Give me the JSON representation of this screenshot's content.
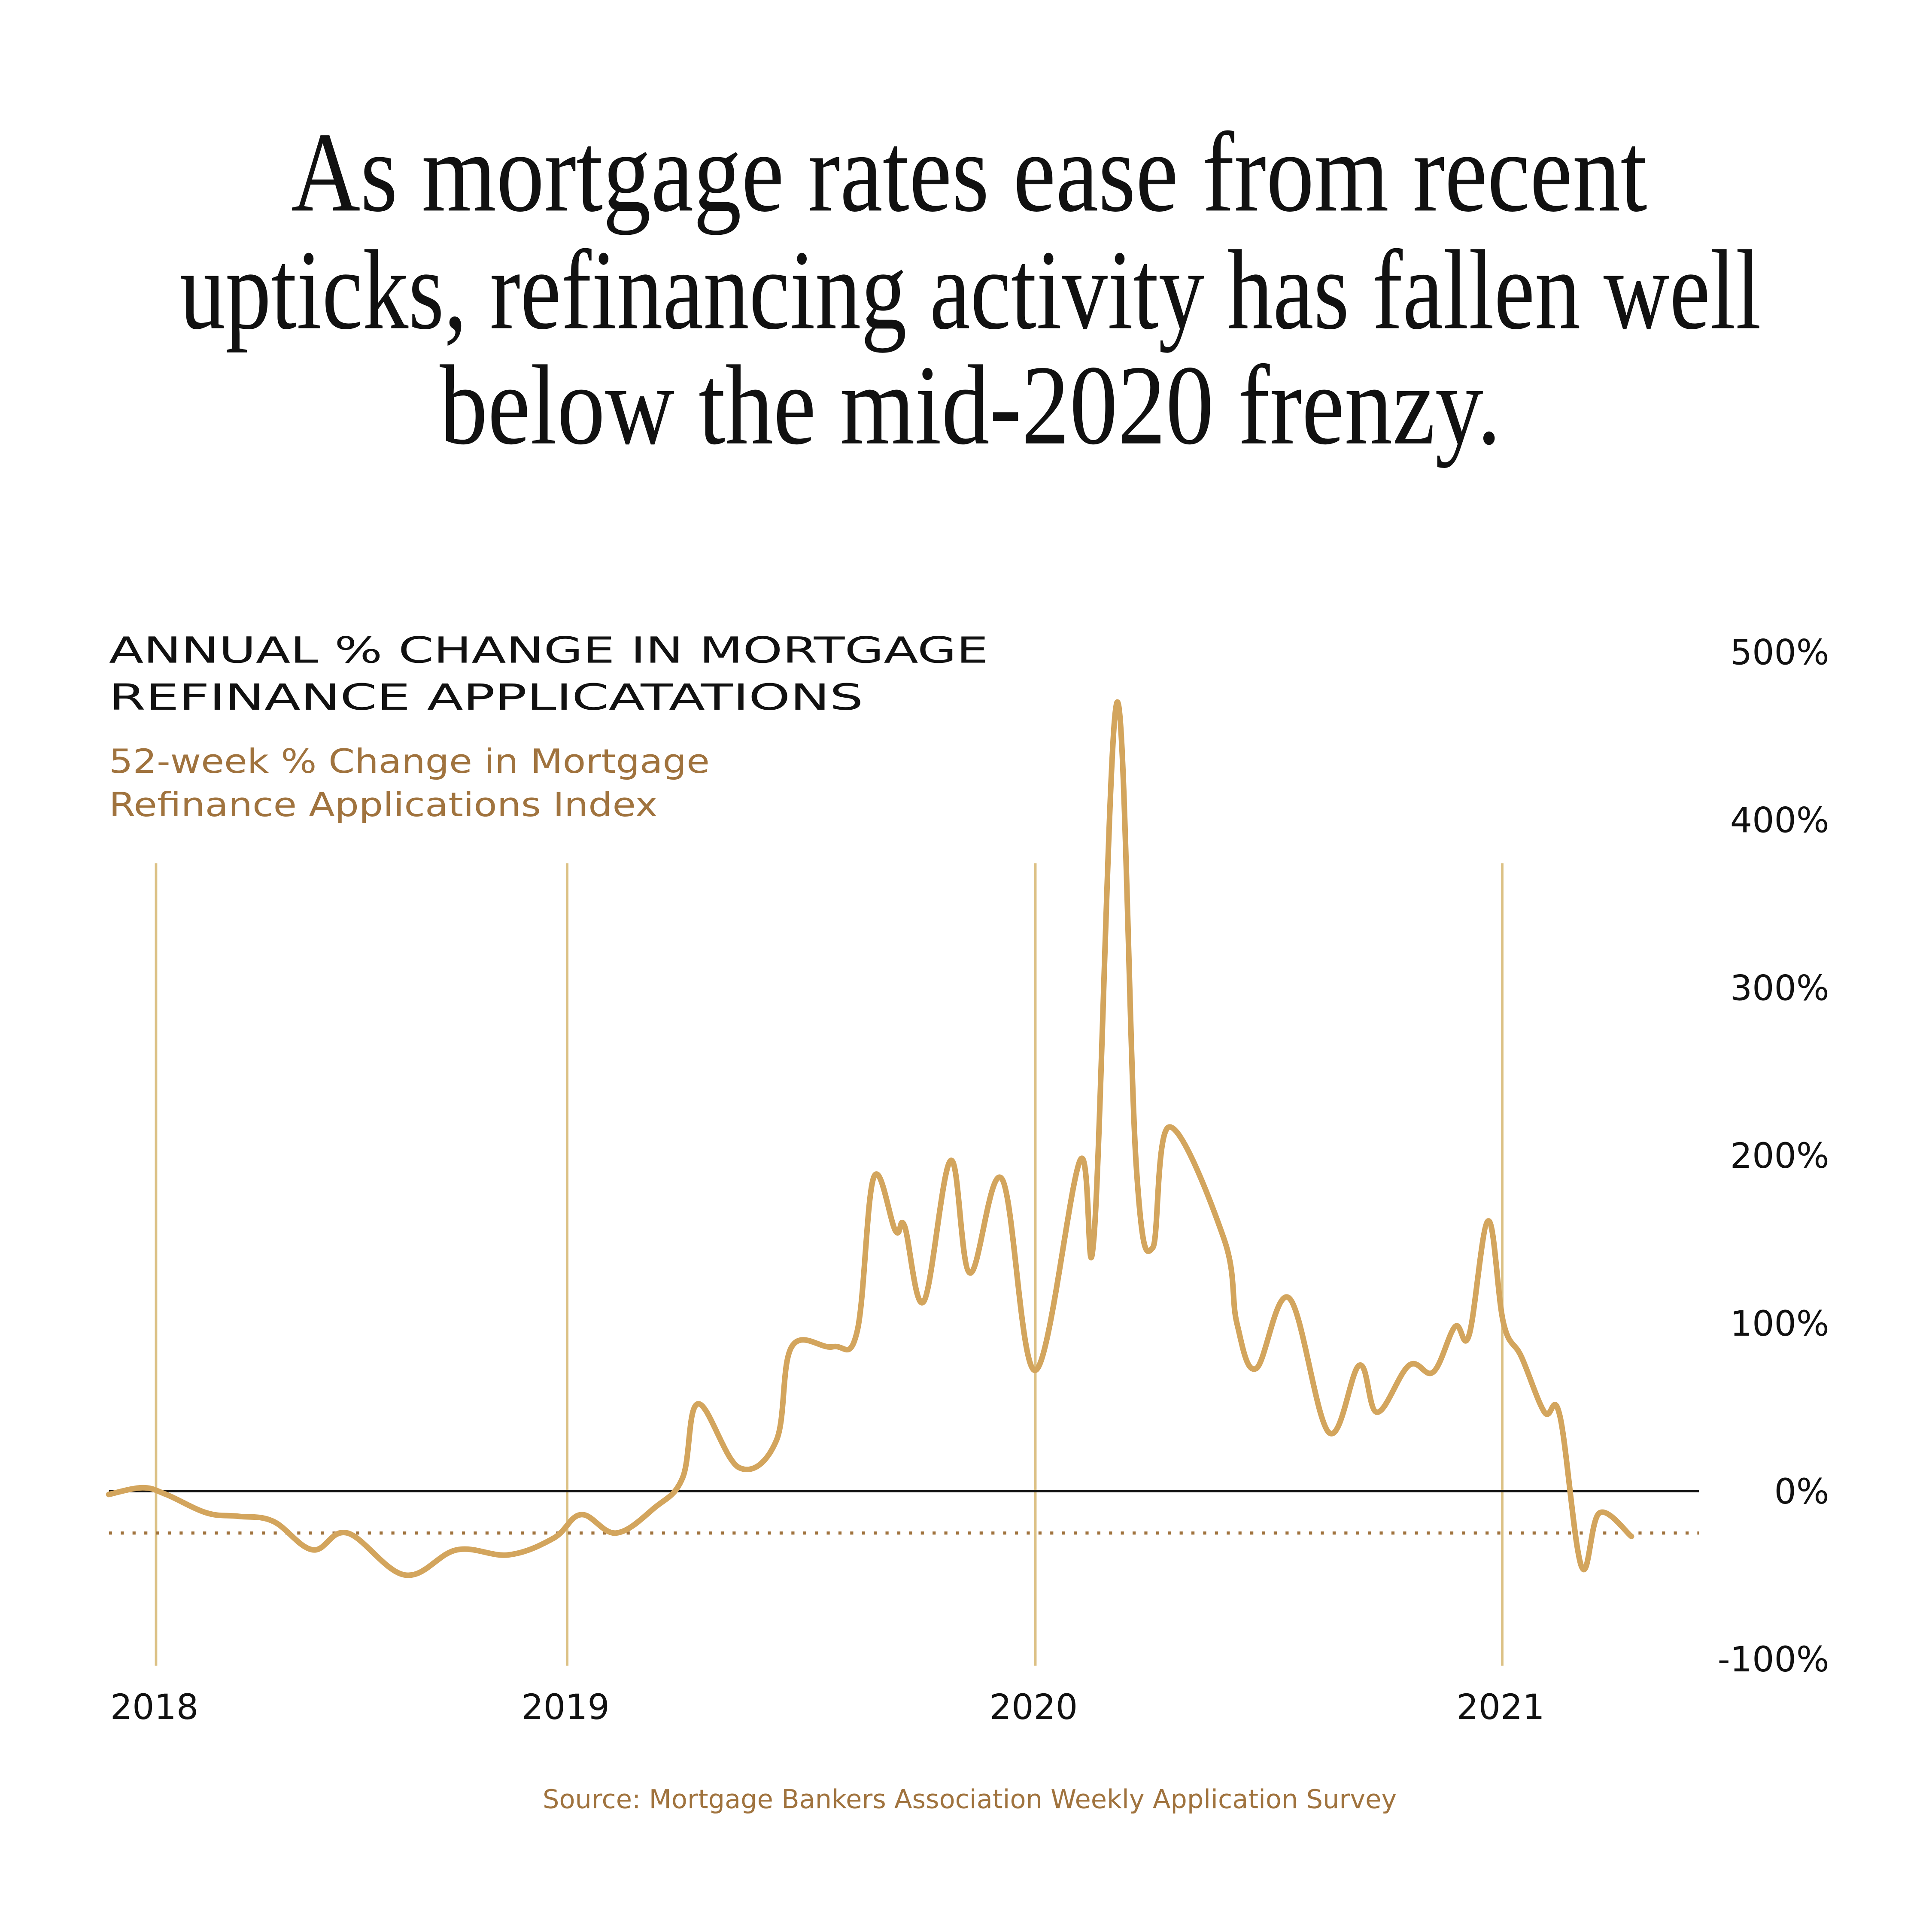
{
  "headline": [
    "As mortgage rates ease from recent",
    "upticks, refinancing activity has fallen well",
    "below the mid-2020 frenzy."
  ],
  "source": "Source:  Mortgage Bankers Association Weekly Application Survey",
  "colors": {
    "line": "#d3a55d",
    "gridline": "#dcc185",
    "text_accent": "#a0733e",
    "zero_line": "#111111",
    "reference_dots": "#a0733e"
  },
  "chart_data": {
    "type": "line",
    "title": [
      "ANNUAL % CHANGE IN MORTGAGE",
      "REFINANCE APPLICATATIONS"
    ],
    "series_label": [
      "52-week % Change in Mortgage",
      "Refinance Applications Index"
    ],
    "ylim": [
      -100,
      500
    ],
    "y_ticks": [
      500,
      400,
      300,
      200,
      100,
      0,
      -100
    ],
    "y_tick_labels": [
      "500%",
      "400%",
      "300%",
      "200%",
      "100%",
      "0%",
      "-100%"
    ],
    "y_axis_side": "right",
    "x_ticks": [
      "2018",
      "2019",
      "2020",
      "2021"
    ],
    "grid": "vertical lines at year starts",
    "reference_line": {
      "value": -25,
      "style": "dotted"
    },
    "zero_line": true,
    "series": [
      {
        "name": "52-week % Change in Mortgage Refinance Applications Index",
        "points": [
          [
            "2017-11-20",
            -2
          ],
          [
            "2017-12-20",
            2
          ],
          [
            "2018-01-10",
            -2
          ],
          [
            "2018-02-15",
            -13
          ],
          [
            "2018-03-15",
            -15
          ],
          [
            "2018-04-15",
            -18
          ],
          [
            "2018-05-20",
            -35
          ],
          [
            "2018-06-20",
            -25
          ],
          [
            "2018-08-10",
            -50
          ],
          [
            "2018-09-25",
            -35
          ],
          [
            "2018-11-10",
            -38
          ],
          [
            "2018-12-20",
            -28
          ],
          [
            "2019-01-12",
            -14
          ],
          [
            "2019-02-08",
            -25
          ],
          [
            "2019-03-10",
            -10
          ],
          [
            "2019-04-01",
            8
          ],
          [
            "2019-04-13",
            52
          ],
          [
            "2019-05-15",
            14
          ],
          [
            "2019-06-13",
            30
          ],
          [
            "2019-06-25",
            86
          ],
          [
            "2019-07-27",
            86
          ],
          [
            "2019-08-15",
            95
          ],
          [
            "2019-08-28",
            187
          ],
          [
            "2019-09-14",
            155
          ],
          [
            "2019-09-21",
            158
          ],
          [
            "2019-10-06",
            113
          ],
          [
            "2019-10-27",
            197
          ],
          [
            "2019-11-11",
            130
          ],
          [
            "2019-12-06",
            186
          ],
          [
            "2020-01-01",
            72
          ],
          [
            "2020-02-05",
            197
          ],
          [
            "2020-02-16",
            152
          ],
          [
            "2020-03-05",
            470
          ],
          [
            "2020-03-20",
            195
          ],
          [
            "2020-04-02",
            145
          ],
          [
            "2020-04-15",
            217
          ],
          [
            "2020-05-28",
            150
          ],
          [
            "2020-06-07",
            100
          ],
          [
            "2020-06-22",
            73
          ],
          [
            "2020-07-18",
            115
          ],
          [
            "2020-08-18",
            35
          ],
          [
            "2020-09-11",
            75
          ],
          [
            "2020-09-25",
            47
          ],
          [
            "2020-10-20",
            75
          ],
          [
            "2020-11-08",
            71
          ],
          [
            "2020-11-25",
            98
          ],
          [
            "2020-12-06",
            93
          ],
          [
            "2020-12-21",
            161
          ],
          [
            "2021-01-02",
            100
          ],
          [
            "2021-01-16",
            80
          ],
          [
            "2021-02-03",
            47
          ],
          [
            "2021-02-15",
            45
          ],
          [
            "2021-03-04",
            -45
          ],
          [
            "2021-03-18",
            -13
          ],
          [
            "2021-04-12",
            -27
          ]
        ]
      }
    ]
  }
}
